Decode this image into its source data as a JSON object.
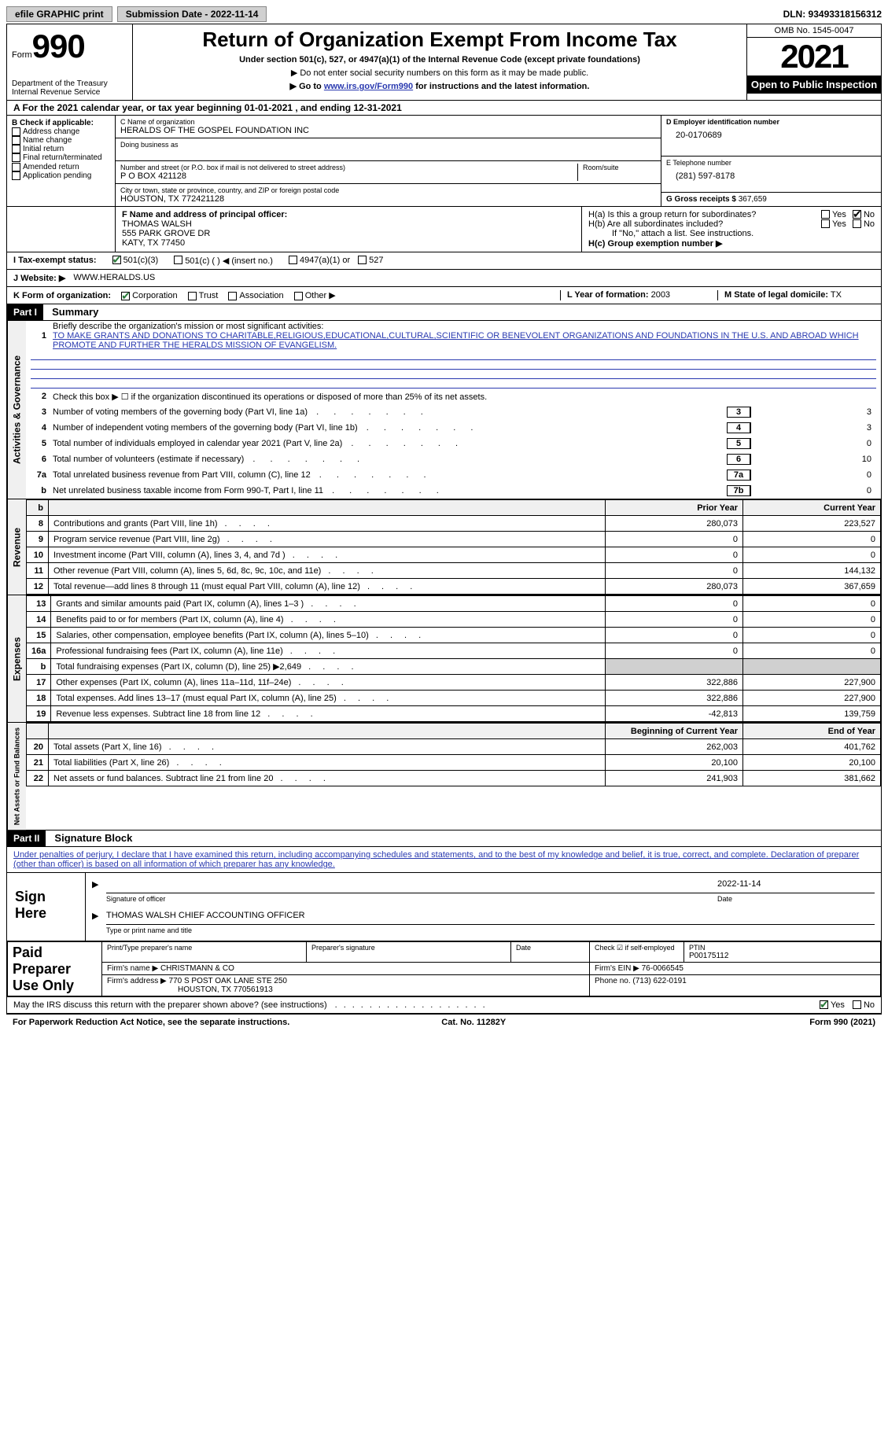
{
  "topbar": {
    "efile": "efile GRAPHIC print",
    "submission": "Submission Date - 2022-11-14",
    "dln": "DLN: 93493318156312"
  },
  "header": {
    "form_label": "Form",
    "form_number": "990",
    "dept1": "Department of the Treasury",
    "dept2": "Internal Revenue Service",
    "title": "Return of Organization Exempt From Income Tax",
    "subtitle": "Under section 501(c), 527, or 4947(a)(1) of the Internal Revenue Code (except private foundations)",
    "note1": "▶ Do not enter social security numbers on this form as it may be made public.",
    "note2_pre": "▶ Go to ",
    "note2_link": "www.irs.gov/Form990",
    "note2_post": " for instructions and the latest information.",
    "omb": "OMB No. 1545-0047",
    "year": "2021",
    "inspection": "Open to Public Inspection"
  },
  "period": {
    "text": "A For the 2021 calendar year, or tax year beginning 01-01-2021    , and ending 12-31-2021"
  },
  "sectionB": {
    "label": "B Check if applicable:",
    "options": [
      "Address change",
      "Name change",
      "Initial return",
      "Final return/terminated",
      "Amended return",
      "Application pending"
    ]
  },
  "sectionC": {
    "name_label": "C Name of organization",
    "name": "HERALDS OF THE GOSPEL FOUNDATION INC",
    "dba_label": "Doing business as",
    "addr_label": "Number and street (or P.O. box if mail is not delivered to street address)",
    "room_label": "Room/suite",
    "addr": "P O BOX 421128",
    "city_label": "City or town, state or province, country, and ZIP or foreign postal code",
    "city": "HOUSTON, TX  772421128"
  },
  "sectionD": {
    "label": "D Employer identification number",
    "val": "20-0170689"
  },
  "sectionE": {
    "label": "E Telephone number",
    "val": "(281) 597-8178"
  },
  "sectionG": {
    "label": "G Gross receipts $",
    "val": "367,659"
  },
  "sectionF": {
    "label": "F Name and address of principal officer:",
    "name": "THOMAS WALSH",
    "addr1": "555 PARK GROVE DR",
    "addr2": "KATY, TX  77450"
  },
  "sectionH": {
    "a": "H(a)  Is this a group return for subordinates?",
    "b": "H(b)  Are all subordinates included?",
    "b_note": "If \"No,\" attach a list. See instructions.",
    "c": "H(c)  Group exemption number ▶",
    "yes": "Yes",
    "no": "No"
  },
  "sectionI": {
    "label": "I  Tax-exempt status:",
    "opt1": "501(c)(3)",
    "opt2": "501(c) (   ) ◀ (insert no.)",
    "opt3": "4947(a)(1) or",
    "opt4": "527"
  },
  "sectionJ": {
    "label": "J  Website: ▶",
    "val": "WWW.HERALDS.US"
  },
  "sectionK": {
    "label": "K Form of organization:",
    "opts": [
      "Corporation",
      "Trust",
      "Association",
      "Other ▶"
    ]
  },
  "sectionL": {
    "label": "L Year of formation:",
    "val": "2003"
  },
  "sectionM": {
    "label": "M State of legal domicile:",
    "val": "TX"
  },
  "part1": {
    "header": "Part I",
    "title": "Summary",
    "line1_label": "Briefly describe the organization's mission or most significant activities:",
    "line1_text": "TO MAKE GRANTS AND DONATIONS TO CHARITABLE,RELIGIOUS,EDUCATIONAL,CULTURAL,SCIENTIFIC OR BENEVOLENT ORGANIZATIONS AND FOUNDATIONS IN THE U.S. AND ABROAD WHICH PROMOTE AND FURTHER THE HERALDS MISSION OF EVANGELISM.",
    "line2": "Check this box ▶ ☐ if the organization discontinued its operations or disposed of more than 25% of its net assets.",
    "lines": [
      {
        "n": "3",
        "d": "Number of voting members of the governing body (Part VI, line 1a)",
        "box": "3",
        "v": "3"
      },
      {
        "n": "4",
        "d": "Number of independent voting members of the governing body (Part VI, line 1b)",
        "box": "4",
        "v": "3"
      },
      {
        "n": "5",
        "d": "Total number of individuals employed in calendar year 2021 (Part V, line 2a)",
        "box": "5",
        "v": "0"
      },
      {
        "n": "6",
        "d": "Total number of volunteers (estimate if necessary)",
        "box": "6",
        "v": "10"
      },
      {
        "n": "7a",
        "d": "Total unrelated business revenue from Part VIII, column (C), line 12",
        "box": "7a",
        "v": "0"
      },
      {
        "n": "b",
        "d": "Net unrelated business taxable income from Form 990-T, Part I, line 11",
        "box": "7b",
        "v": "0"
      }
    ],
    "th_prior": "Prior Year",
    "th_current": "Current Year",
    "revenue": [
      {
        "n": "8",
        "d": "Contributions and grants (Part VIII, line 1h)",
        "p": "280,073",
        "c": "223,527"
      },
      {
        "n": "9",
        "d": "Program service revenue (Part VIII, line 2g)",
        "p": "0",
        "c": "0"
      },
      {
        "n": "10",
        "d": "Investment income (Part VIII, column (A), lines 3, 4, and 7d )",
        "p": "0",
        "c": "0"
      },
      {
        "n": "11",
        "d": "Other revenue (Part VIII, column (A), lines 5, 6d, 8c, 9c, 10c, and 11e)",
        "p": "0",
        "c": "144,132"
      },
      {
        "n": "12",
        "d": "Total revenue—add lines 8 through 11 (must equal Part VIII, column (A), line 12)",
        "p": "280,073",
        "c": "367,659"
      }
    ],
    "expenses": [
      {
        "n": "13",
        "d": "Grants and similar amounts paid (Part IX, column (A), lines 1–3 )",
        "p": "0",
        "c": "0"
      },
      {
        "n": "14",
        "d": "Benefits paid to or for members (Part IX, column (A), line 4)",
        "p": "0",
        "c": "0"
      },
      {
        "n": "15",
        "d": "Salaries, other compensation, employee benefits (Part IX, column (A), lines 5–10)",
        "p": "0",
        "c": "0"
      },
      {
        "n": "16a",
        "d": "Professional fundraising fees (Part IX, column (A), line 11e)",
        "p": "0",
        "c": "0"
      },
      {
        "n": "b",
        "d": "Total fundraising expenses (Part IX, column (D), line 25) ▶2,649",
        "p": "",
        "c": "",
        "gray": true
      },
      {
        "n": "17",
        "d": "Other expenses (Part IX, column (A), lines 11a–11d, 11f–24e)",
        "p": "322,886",
        "c": "227,900"
      },
      {
        "n": "18",
        "d": "Total expenses. Add lines 13–17 (must equal Part IX, column (A), line 25)",
        "p": "322,886",
        "c": "227,900"
      },
      {
        "n": "19",
        "d": "Revenue less expenses. Subtract line 18 from line 12",
        "p": "-42,813",
        "c": "139,759"
      }
    ],
    "th_begin": "Beginning of Current Year",
    "th_end": "End of Year",
    "netassets": [
      {
        "n": "20",
        "d": "Total assets (Part X, line 16)",
        "p": "262,003",
        "c": "401,762"
      },
      {
        "n": "21",
        "d": "Total liabilities (Part X, line 26)",
        "p": "20,100",
        "c": "20,100"
      },
      {
        "n": "22",
        "d": "Net assets or fund balances. Subtract line 21 from line 20",
        "p": "241,903",
        "c": "381,662"
      }
    ],
    "vtab1": "Activities & Governance",
    "vtab2": "Revenue",
    "vtab3": "Expenses",
    "vtab4": "Net Assets or Fund Balances"
  },
  "part2": {
    "header": "Part II",
    "title": "Signature Block",
    "declaration": "Under penalties of perjury, I declare that I have examined this return, including accompanying schedules and statements, and to the best of my knowledge and belief, it is true, correct, and complete. Declaration of preparer (other than officer) is based on all information of which preparer has any knowledge.",
    "sign_here": "Sign Here",
    "sig_officer": "Signature of officer",
    "sig_date": "2022-11-14",
    "date_label": "Date",
    "officer_name": "THOMAS WALSH  CHIEF ACCOUNTING OFFICER",
    "officer_label": "Type or print name and title",
    "paid_label": "Paid Preparer Use Only",
    "prep_name_label": "Print/Type preparer's name",
    "prep_sig_label": "Preparer's signature",
    "prep_date_label": "Date",
    "prep_check_label": "Check ☑ if self-employed",
    "ptin_label": "PTIN",
    "ptin": "P00175112",
    "firm_name_label": "Firm's name    ▶",
    "firm_name": "CHRISTMANN & CO",
    "firm_ein_label": "Firm's EIN ▶",
    "firm_ein": "76-0066545",
    "firm_addr_label": "Firm's address ▶",
    "firm_addr1": "770 S POST OAK LANE STE 250",
    "firm_addr2": "HOUSTON, TX  770561913",
    "phone_label": "Phone no.",
    "phone": "(713) 622-0191",
    "may_irs": "May the IRS discuss this return with the preparer shown above? (see instructions)",
    "yes": "Yes",
    "no": "No"
  },
  "footer": {
    "left": "For Paperwork Reduction Act Notice, see the separate instructions.",
    "mid": "Cat. No. 11282Y",
    "right": "Form 990 (2021)"
  }
}
